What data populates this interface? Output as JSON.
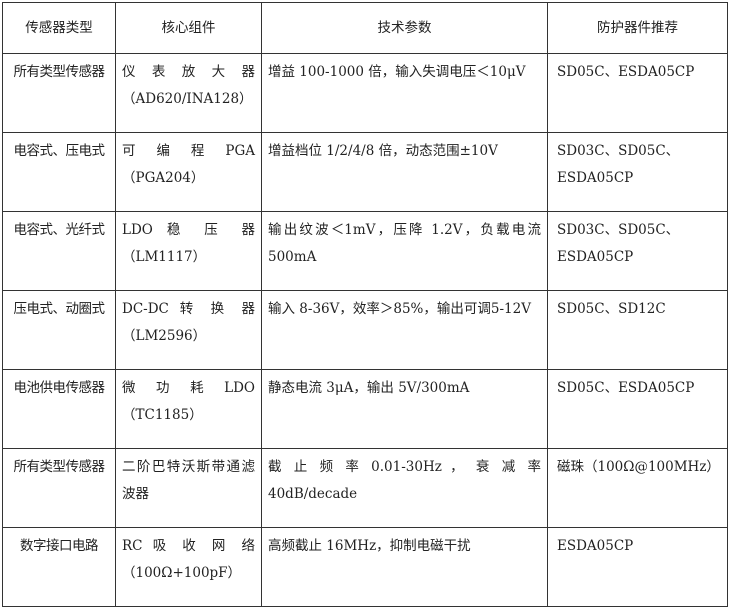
{
  "headers": [
    "传感器类型",
    "核心组件",
    "技术参数",
    "防护器件推荐"
  ],
  "rows": [
    {
      "type": "所有类型传感器",
      "component": "仪 表 放 大 器（AD620/INA128）",
      "params": "增益 100-1000 倍，输入失调电压＜10μV",
      "protection": "SD05C、ESDA05CP"
    },
    {
      "type": "电容式、压电式",
      "component": "可 编 程 PGA（PGA204）",
      "params": "增益档位 1/2/4/8 倍，动态范围±10V",
      "protection": "SD03C、SD05C、ESDA05CP"
    },
    {
      "type": "电容式、光纤式",
      "component": "LDO 稳 压 器（LM1117）",
      "params": "输出纹波＜1mV，压降 1.2V，负载电流 500mA",
      "protection": "SD03C、SD05C、ESDA05CP"
    },
    {
      "type": "压电式、动圈式",
      "component": "DC-DC 转 换 器（LM2596）",
      "params": "输入 8-36V，效率＞85%，输出可调5-12V",
      "protection": "SD05C、SD12C"
    },
    {
      "type": "电池供电传感器",
      "component": "微 功 耗 LDO（TC1185）",
      "params": "静态电流 3μA，输出 5V/300mA",
      "protection": "SD05C、ESDA05CP"
    },
    {
      "type": "所有类型传感器",
      "component": "二阶巴特沃斯带通滤波器",
      "params": "截 止 频 率  0.01-30Hz ， 衰 减 率40dB/decade",
      "protection": "磁珠（100Ω@100MHz）"
    },
    {
      "type": "数字接口电路",
      "component": "RC 吸 收 网 络（100Ω+100pF）",
      "params": "高频截止 16MHz，抑制电磁干扰",
      "protection": "ESDA05CP"
    }
  ]
}
